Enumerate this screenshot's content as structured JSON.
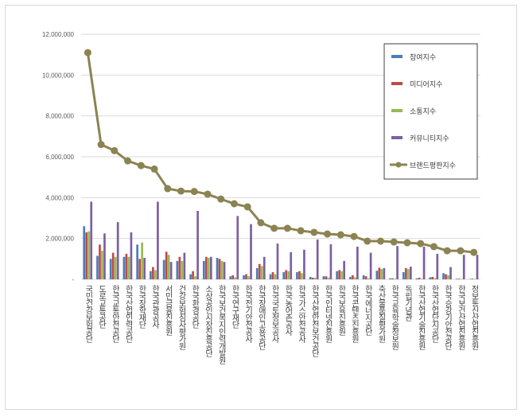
{
  "chart_data": {
    "type": "bar+line",
    "title": "",
    "xlabel": "",
    "ylabel": "",
    "ylim": [
      0,
      12000000
    ],
    "yticks": [
      "-",
      "2,000,000",
      "4,000,000",
      "6,000,000",
      "8,000,000",
      "10,000,000",
      "12,000,000"
    ],
    "grid": true,
    "legend": "top-right",
    "categories": [
      "국민건강보험공단",
      "도로교통공단",
      "한국교통안전공단",
      "한국산업인력공단",
      "한국장학재단",
      "한국관광공사",
      "서민금융진흥원",
      "건강보험심사평가원",
      "한국환경공단",
      "소상공인시장진흥공단",
      "한국보건복지인력개발원",
      "한국연구재단",
      "한국전기안전공사",
      "한국장애인고용공단",
      "한국국토정보공사",
      "한국농어촌공사",
      "한국가스안전공사",
      "한국산업안전보건공단",
      "한국인터넷진흥원",
      "한국보육진흥원",
      "한국콘텐츠진흥원",
      "한국에너지공단",
      "축산물품질평가원",
      "한국교육학술정보원",
      "독립기념관",
      "한국산업기술진흥원",
      "한국산업단지공단",
      "한국승강기안전공단",
      "한국보건산업진흥원",
      "정보통신산업진흥원"
    ],
    "series": [
      {
        "name": "참여지수",
        "type": "bar",
        "color": "#4a7ebb",
        "values": [
          2600000,
          1150000,
          1000000,
          1100000,
          1700000,
          400000,
          950000,
          900000,
          250000,
          900000,
          1050000,
          150000,
          200000,
          550000,
          250000,
          350000,
          350000,
          120000,
          150000,
          400000,
          120000,
          200000,
          420000,
          50000,
          350000,
          50000,
          100000,
          300000,
          30000,
          20000
        ]
      },
      {
        "name": "미디어지수",
        "type": "bar",
        "color": "#be4b48",
        "values": [
          2300000,
          1700000,
          1300000,
          1250000,
          1000000,
          600000,
          1350000,
          1100000,
          400000,
          1100000,
          1000000,
          200000,
          250000,
          750000,
          350000,
          450000,
          400000,
          80000,
          150000,
          450000,
          200000,
          150000,
          570000,
          50000,
          550000,
          80000,
          120000,
          250000,
          30000,
          30000
        ]
      },
      {
        "name": "소통지수",
        "type": "bar",
        "color": "#98b954",
        "values": [
          2350000,
          1400000,
          1100000,
          1100000,
          1800000,
          450000,
          1200000,
          900000,
          150000,
          1050000,
          900000,
          100000,
          150000,
          650000,
          250000,
          400000,
          300000,
          80000,
          80000,
          400000,
          100000,
          50000,
          500000,
          30000,
          500000,
          30000,
          60000,
          200000,
          20000,
          20000
        ]
      },
      {
        "name": "커뮤니티지수",
        "type": "bar",
        "color": "#7d60a0",
        "values": [
          3800000,
          2250000,
          2800000,
          2300000,
          1050000,
          3800000,
          850000,
          1300000,
          3350000,
          1100000,
          850000,
          3100000,
          2700000,
          1100000,
          1750000,
          1330000,
          1450000,
          1950000,
          1720000,
          900000,
          1600000,
          1300000,
          550000,
          1630000,
          620000,
          1600000,
          1250000,
          600000,
          1200000,
          1200000
        ]
      },
      {
        "name": "브랜드평판지수",
        "type": "line",
        "color": "#8c8352",
        "values": [
          11100000,
          6600000,
          6300000,
          5800000,
          5570000,
          5400000,
          4440000,
          4320000,
          4300000,
          4170000,
          3930000,
          3700000,
          3550000,
          2770000,
          2500000,
          2500000,
          2380000,
          2300000,
          2220000,
          2180000,
          2100000,
          1870000,
          1870000,
          1830000,
          1790000,
          1750000,
          1600000,
          1400000,
          1400000,
          1320000
        ]
      }
    ]
  }
}
